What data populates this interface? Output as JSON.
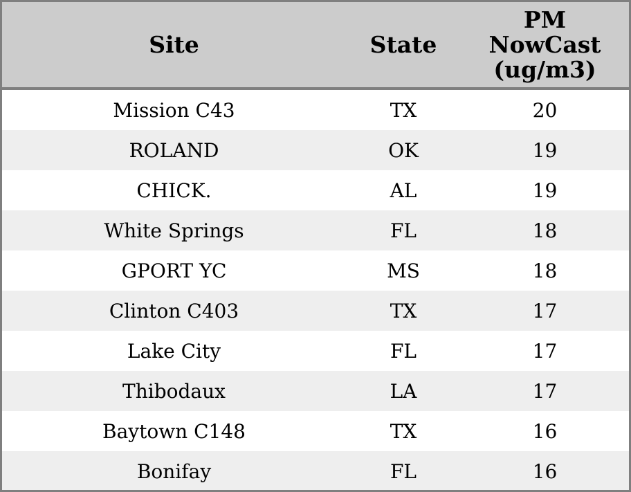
{
  "table": {
    "header": {
      "site": "Site",
      "state": "State",
      "pm_lines": [
        "PM",
        "NowCast",
        "(ug/m3)"
      ]
    },
    "rows": [
      {
        "site": "Mission C43",
        "state": "TX",
        "value": "20"
      },
      {
        "site": "ROLAND",
        "state": "OK",
        "value": "19"
      },
      {
        "site": "CHICK.",
        "state": "AL",
        "value": "19"
      },
      {
        "site": "White Springs",
        "state": "FL",
        "value": "18"
      },
      {
        "site": "GPORT YC",
        "state": "MS",
        "value": "18"
      },
      {
        "site": "Clinton C403",
        "state": "TX",
        "value": "17"
      },
      {
        "site": "Lake City",
        "state": "FL",
        "value": "17"
      },
      {
        "site": "Thibodaux",
        "state": "LA",
        "value": "17"
      },
      {
        "site": "Baytown C148",
        "state": "TX",
        "value": "16"
      },
      {
        "site": "Bonifay",
        "state": "FL",
        "value": "16"
      }
    ],
    "colors": {
      "header_bg": "#cccccc",
      "row_alt_bg": "#eeeeee",
      "row_bg": "#ffffff",
      "border": "#7f7f7f",
      "text": "#000000"
    }
  },
  "chart_data": {
    "type": "table",
    "title": "",
    "columns": [
      "Site",
      "State",
      "PM NowCast (ug/m3)"
    ],
    "rows": [
      [
        "Mission C43",
        "TX",
        20
      ],
      [
        "ROLAND",
        "OK",
        19
      ],
      [
        "CHICK.",
        "AL",
        19
      ],
      [
        "White Springs",
        "FL",
        18
      ],
      [
        "GPORT YC",
        "MS",
        18
      ],
      [
        "Clinton C403",
        "TX",
        17
      ],
      [
        "Lake City",
        "FL",
        17
      ],
      [
        "Thibodaux",
        "LA",
        17
      ],
      [
        "Baytown C148",
        "TX",
        16
      ],
      [
        "Bonifay",
        "FL",
        16
      ]
    ],
    "layout_hints": {
      "header_background": "#cccccc",
      "alternating_row_background": [
        "#eeeeee",
        "#ffffff"
      ],
      "text_align": "center",
      "sorted_by": "PM NowCast descending"
    }
  }
}
